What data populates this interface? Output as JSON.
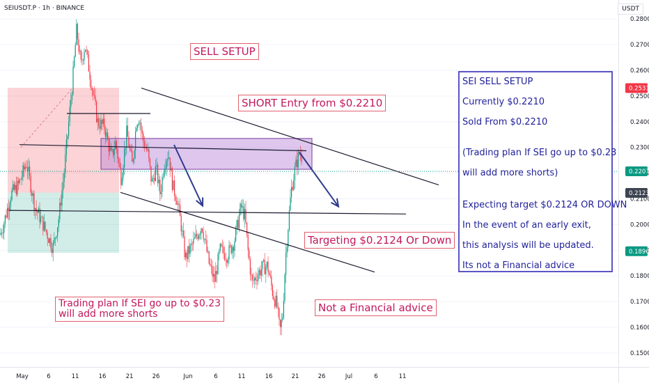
{
  "header": {
    "symbol": "SEIUSDT.P · 1h · BINANCE",
    "currency": "USDT"
  },
  "colors": {
    "up": "#089981",
    "down": "#f23645",
    "accent": "#5b54c5",
    "label": "#c2185b"
  },
  "chart_data": {
    "type": "candlestick",
    "ylim": [
      0.147,
      0.2825
    ],
    "y_ticks": [
      "0.2800",
      "0.2700",
      "0.2600",
      "0.2500",
      "0.2400",
      "0.2300",
      "0.2200",
      "0.2100",
      "0.2000",
      "0.1900",
      "0.1800",
      "0.1700",
      "0.1600",
      "0.1500"
    ],
    "x_ticks": [
      "May",
      "6",
      "11",
      "16",
      "21",
      "26",
      "Jun",
      "6",
      "11",
      "16",
      "21",
      "26",
      "Jul",
      "6",
      "11"
    ],
    "price_badges": [
      {
        "value": "0.2531",
        "color": "#f23645"
      },
      {
        "value": "0.2207",
        "color": "#089981"
      },
      {
        "value": "0.2123",
        "color": "#3d4451"
      },
      {
        "value": "0.1896",
        "color": "#089981"
      }
    ],
    "path": [
      [
        0,
        0.196
      ],
      [
        5,
        0.2
      ],
      [
        16,
        0.212
      ],
      [
        26,
        0.215
      ],
      [
        38,
        0.224
      ],
      [
        50,
        0.207
      ],
      [
        62,
        0.2
      ],
      [
        76,
        0.191
      ],
      [
        84,
        0.202
      ],
      [
        92,
        0.22
      ],
      [
        98,
        0.238
      ],
      [
        104,
        0.255
      ],
      [
        110,
        0.276
      ],
      [
        116,
        0.262
      ],
      [
        122,
        0.27
      ],
      [
        130,
        0.257
      ],
      [
        140,
        0.24
      ],
      [
        150,
        0.238
      ],
      [
        160,
        0.226
      ],
      [
        166,
        0.232
      ],
      [
        174,
        0.218
      ],
      [
        182,
        0.236
      ],
      [
        190,
        0.223
      ],
      [
        196,
        0.24
      ],
      [
        200,
        0.242
      ],
      [
        205,
        0.233
      ],
      [
        212,
        0.228
      ],
      [
        218,
        0.216
      ],
      [
        224,
        0.222
      ],
      [
        230,
        0.212
      ],
      [
        236,
        0.224
      ],
      [
        242,
        0.228
      ],
      [
        248,
        0.215
      ],
      [
        254,
        0.21
      ],
      [
        260,
        0.2
      ],
      [
        266,
        0.187
      ],
      [
        272,
        0.19
      ],
      [
        280,
        0.194
      ],
      [
        290,
        0.2
      ],
      [
        300,
        0.185
      ],
      [
        308,
        0.178
      ],
      [
        316,
        0.19
      ],
      [
        326,
        0.188
      ],
      [
        336,
        0.193
      ],
      [
        346,
        0.207
      ],
      [
        352,
        0.203
      ],
      [
        356,
        0.19
      ],
      [
        362,
        0.177
      ],
      [
        368,
        0.18
      ],
      [
        376,
        0.183
      ],
      [
        384,
        0.184
      ],
      [
        392,
        0.173
      ],
      [
        398,
        0.168
      ],
      [
        402,
        0.158
      ],
      [
        406,
        0.165
      ],
      [
        410,
        0.187
      ],
      [
        414,
        0.2
      ],
      [
        418,
        0.213
      ],
      [
        424,
        0.222
      ],
      [
        430,
        0.228
      ],
      [
        434,
        0.226
      ]
    ],
    "zones": [
      {
        "name": "risk",
        "y0": 0.2532,
        "y1": 0.2124,
        "x0": 11,
        "x1": 171,
        "color": "rgba(242,54,69,0.22)"
      },
      {
        "name": "reward",
        "y0": 0.2124,
        "y1": 0.189,
        "x0": 11,
        "x1": 171,
        "color": "rgba(8,153,129,0.18)"
      },
      {
        "name": "entry",
        "y0": 0.2335,
        "y1": 0.2215,
        "x0": 145,
        "x1": 448,
        "color": "rgba(181,128,214,0.45)"
      }
    ],
    "lines": [
      [
        [
          203,
          0.2531
        ],
        [
          630,
          0.2154
        ]
      ],
      [
        [
          173,
          0.2125
        ],
        [
          538,
          0.1815
        ]
      ],
      [
        [
          13,
          0.2055
        ],
        [
          583,
          0.2041
        ]
      ],
      [
        [
          28,
          0.2311
        ],
        [
          440,
          0.2287
        ]
      ],
      [
        [
          96,
          0.2432
        ],
        [
          216,
          0.2432
        ]
      ]
    ],
    "arrows": [
      [
        [
          250,
          0.231
        ],
        [
          291,
          0.2073
        ]
      ],
      [
        [
          430,
          0.2281
        ],
        [
          486,
          0.207
        ]
      ]
    ]
  },
  "labels": {
    "sell_setup": "SELL SETUP",
    "short_entry": "SHORT Entry from $0.2210",
    "targeting": "Targeting $0.2124 Or Down",
    "plan_line1": "Trading plan If SEI go up to $0.23",
    "plan_line2": "will add more shorts",
    "not_advice": "Not a Financial advice"
  },
  "info_box": {
    "l1": "SEI SELL SETUP",
    "l2": "Currently $0.2210",
    "l3": "Sold From $0.2210",
    "l4": "(Trading plan If SEI go up to $0.23",
    "l5": "will add more shorts)",
    "l6": "Expecting target $0.2124 OR DOWN",
    "l7": "In the event of an early exit,",
    "l8": "this analysis will be updated.",
    "l9": "Its not a Financial advice"
  }
}
